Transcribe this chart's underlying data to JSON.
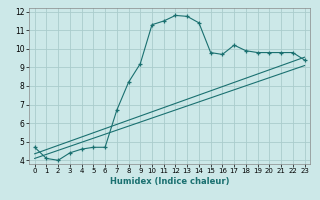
{
  "xlabel": "Humidex (Indice chaleur)",
  "bg_color": "#cce8e8",
  "grid_color": "#aacccc",
  "line_color": "#1a7070",
  "xlim": [
    -0.5,
    23.5
  ],
  "ylim": [
    3.8,
    12.2
  ],
  "xticks": [
    0,
    1,
    2,
    3,
    4,
    5,
    6,
    7,
    8,
    9,
    10,
    11,
    12,
    13,
    14,
    15,
    16,
    17,
    18,
    19,
    20,
    21,
    22,
    23
  ],
  "yticks": [
    4,
    5,
    6,
    7,
    8,
    9,
    10,
    11,
    12
  ],
  "curve1_x": [
    0,
    1,
    2,
    3,
    4,
    5,
    6,
    7,
    8,
    9,
    10,
    11,
    12,
    13,
    14,
    15,
    16,
    17,
    18,
    19,
    20,
    21,
    22,
    23
  ],
  "curve1_y": [
    4.7,
    4.1,
    4.0,
    4.4,
    4.6,
    4.7,
    4.7,
    6.7,
    8.2,
    9.2,
    11.3,
    11.5,
    11.8,
    11.75,
    11.4,
    9.8,
    9.7,
    10.2,
    9.9,
    9.8,
    9.8,
    9.8,
    9.8,
    9.4
  ],
  "curve2_x": [
    0,
    23
  ],
  "curve2_y": [
    4.35,
    9.55
  ],
  "curve3_x": [
    0,
    23
  ],
  "curve3_y": [
    4.1,
    9.1
  ]
}
